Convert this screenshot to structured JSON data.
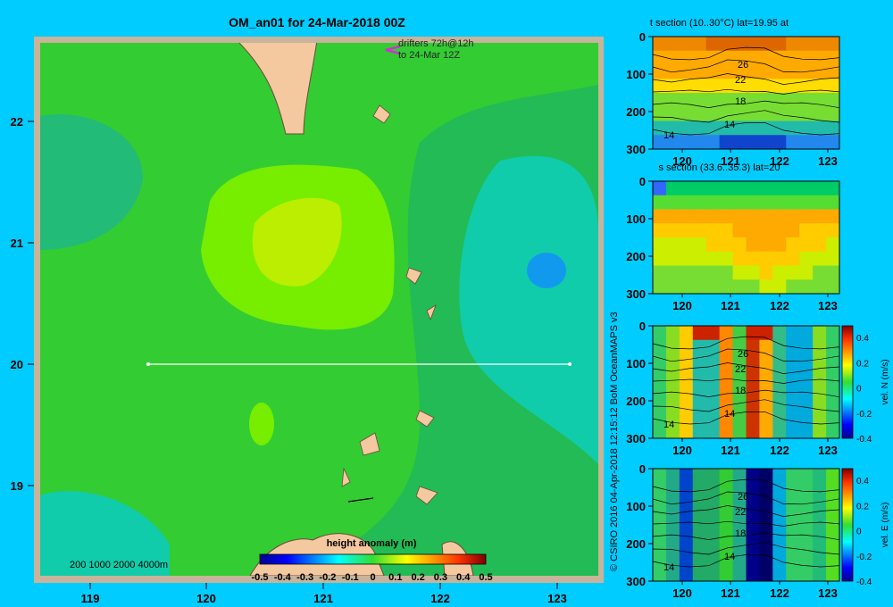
{
  "main_map": {
    "title": "OM_an01 for 24-Mar-2018 00Z",
    "xticks": [
      "119",
      "120",
      "121",
      "122",
      "123"
    ],
    "yticks": [
      "22",
      "21",
      "20",
      "19"
    ],
    "drifter_label_1": "drifters 72h@12h",
    "drifter_label_2": "to 24-Mar 12Z",
    "depth_legend": "200  1000  2000  4000m",
    "colorbar_title": "height anomaly (m)",
    "colorbar_ticks": [
      "-0.5",
      "-0.4",
      "-0.3",
      "-0.2",
      "-0.1",
      "0",
      "0.1",
      "0.2",
      "0.3",
      "0.4",
      "0.5"
    ],
    "section_line_lat": 20,
    "section_lon_range": [
      119.5,
      123.2
    ]
  },
  "credit": "© CSIRO 2016    04-Apr-2018 12:15:12 BoM OceanMAPS v3",
  "sections": [
    {
      "title": "t section (10..30°C) lat=19.95 at",
      "yticks": [
        "0",
        "100",
        "200",
        "300"
      ],
      "xticks": [
        "120",
        "121",
        "122",
        "123"
      ],
      "contour_labels": [
        "26",
        "22",
        "18",
        "14",
        "14"
      ]
    },
    {
      "title": "s section (33.6..35.3) lat=20",
      "yticks": [
        "0",
        "100",
        "200",
        "300"
      ],
      "xticks": [
        "120",
        "121",
        "122",
        "123"
      ],
      "contour_labels": []
    },
    {
      "title": "",
      "yticks": [
        "0",
        "100",
        "200",
        "300"
      ],
      "xticks": [
        "120",
        "121",
        "122",
        "123"
      ],
      "contour_labels": [
        "26",
        "22",
        "18",
        "14",
        "14"
      ],
      "colorbar_label": "vel. N (m/s)",
      "colorbar_ticks": [
        "0.4",
        "0.2",
        "0",
        "-0.2",
        "-0.4"
      ]
    },
    {
      "title": "",
      "yticks": [
        "0",
        "100",
        "200",
        "300"
      ],
      "xticks": [
        "120",
        "121",
        "122",
        "123"
      ],
      "contour_labels": [
        "26",
        "22",
        "18",
        "14",
        "14"
      ],
      "colorbar_label": "vel. E (m/s)",
      "colorbar_ticks": [
        "0.4",
        "0.2",
        "0",
        "-0.2",
        "-0.4"
      ]
    }
  ],
  "colors": {
    "background": "#00ccff",
    "map_frame": "#c8b49a",
    "land": "#f5c9a0",
    "drifter": "#cc33cc"
  },
  "chart_data": [
    {
      "type": "heatmap",
      "title": "OM_an01 for 24-Mar-2018 00Z",
      "xlim": [
        118.5,
        123.5
      ],
      "ylim": [
        18.2,
        22.7
      ],
      "color_scale": "height anomaly (m)",
      "color_range": [
        -0.5,
        0.5
      ],
      "note_values": {
        "high_center": [
          121.0,
          21.0,
          0.15
        ],
        "low_center": [
          123.0,
          20.8,
          -0.15
        ]
      }
    },
    {
      "type": "heatmap",
      "title": "t section (10..30°C) lat=19.95 at",
      "xlim": [
        119.5,
        123.2
      ],
      "ylim": [
        300,
        0
      ]
    },
    {
      "type": "heatmap",
      "title": "s section (33.6..35.3) lat=20",
      "xlim": [
        119.5,
        123.2
      ],
      "ylim": [
        300,
        0
      ]
    },
    {
      "type": "heatmap",
      "xlim": [
        119.5,
        123.2
      ],
      "ylim": [
        300,
        0
      ],
      "colorbar": "vel. N (m/s)",
      "color_range": [
        -0.4,
        0.4
      ]
    },
    {
      "type": "heatmap",
      "xlim": [
        119.5,
        123.2
      ],
      "ylim": [
        300,
        0
      ],
      "colorbar": "vel. E (m/s)",
      "color_range": [
        -0.4,
        0.4
      ]
    }
  ]
}
